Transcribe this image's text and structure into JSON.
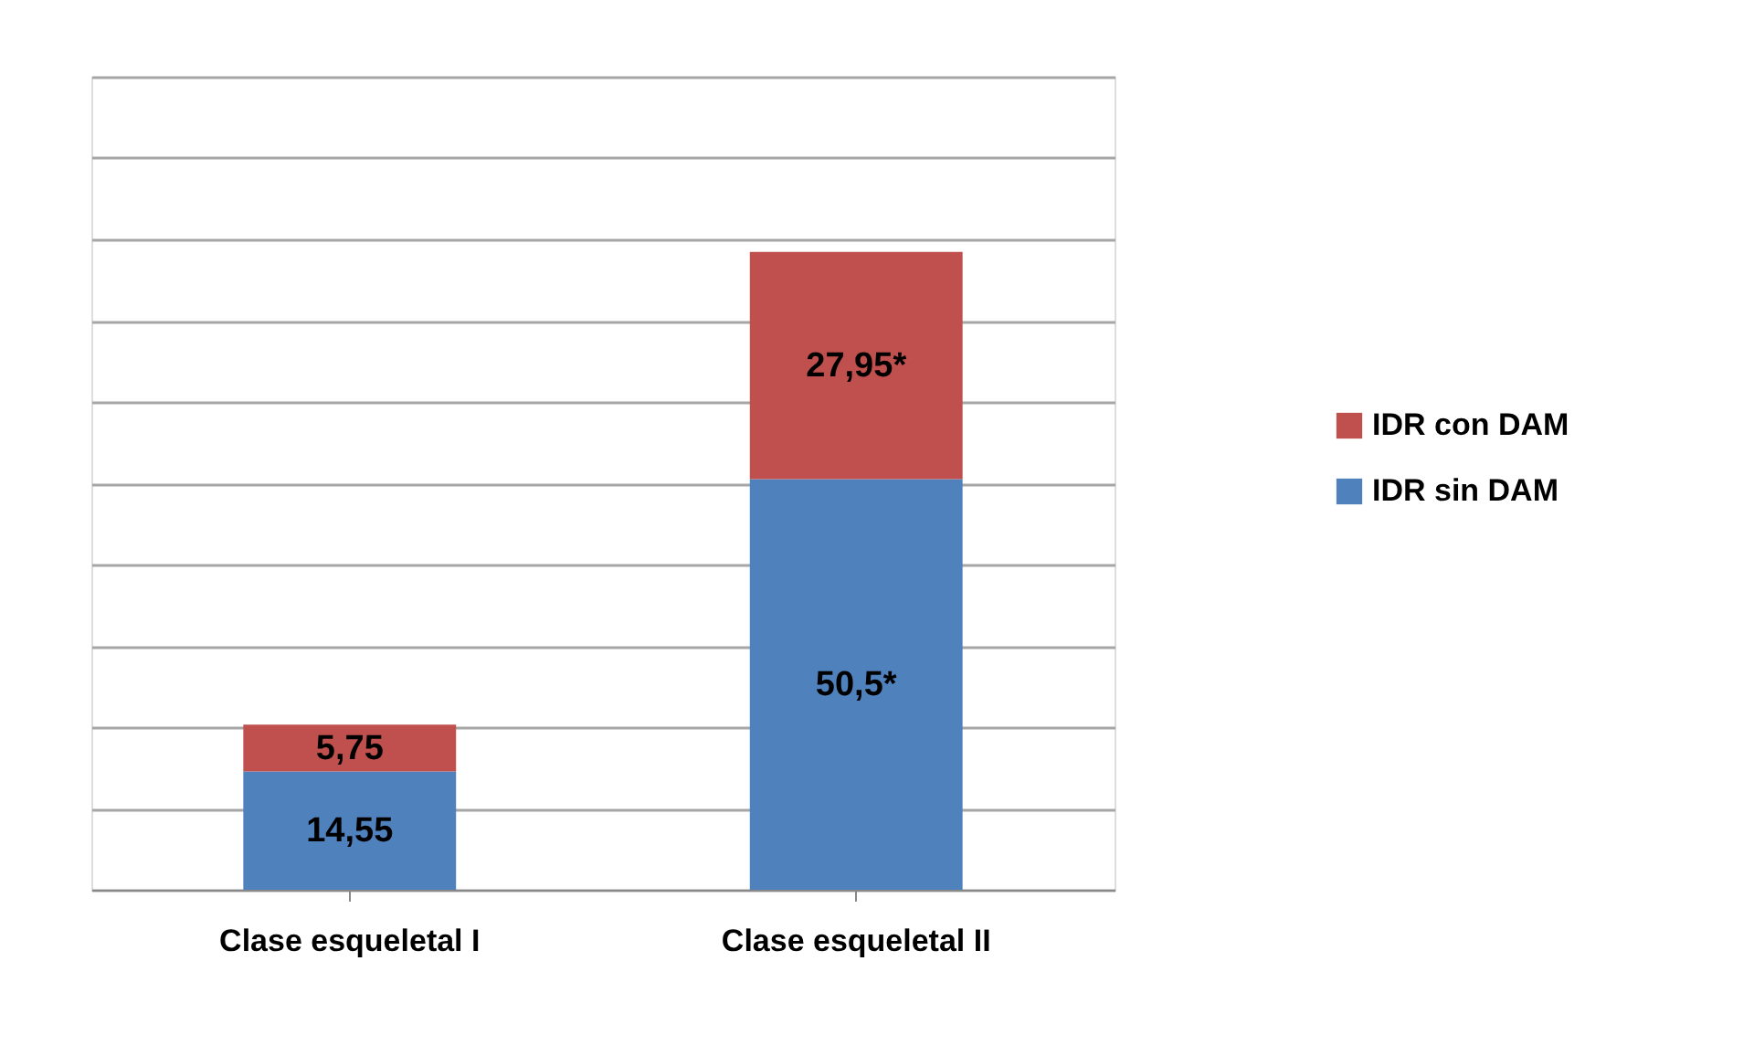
{
  "chart_data": {
    "type": "bar",
    "stacked": true,
    "categories": [
      "Clase esqueletal I",
      "Clase esqueletal II"
    ],
    "series": [
      {
        "name": "IDR sin DAM",
        "color": "#4f81bd",
        "values": [
          14.55,
          50.5
        ],
        "value_labels": [
          "14,55",
          "50,5*"
        ]
      },
      {
        "name": "IDR con DAM",
        "color": "#c0504d",
        "values": [
          5.75,
          27.95
        ],
        "value_labels": [
          "5,75",
          "27,95*"
        ]
      }
    ],
    "ylim": [
      0,
      100
    ],
    "yticks": [
      {
        "value": 0,
        "label": null
      },
      {
        "value": 10,
        "label": null
      },
      {
        "value": 20,
        "label": null
      },
      {
        "value": 30,
        "label": null
      },
      {
        "value": 40,
        "label": null
      },
      {
        "value": 50,
        "label": null
      },
      {
        "value": 60,
        "label": null
      },
      {
        "value": 70,
        "label": null
      },
      {
        "value": 80,
        "label": null
      },
      {
        "value": 90,
        "label": null
      },
      {
        "value": 100,
        "label": null
      }
    ],
    "grid": "y",
    "tick_labels": "x",
    "legend": "right"
  }
}
